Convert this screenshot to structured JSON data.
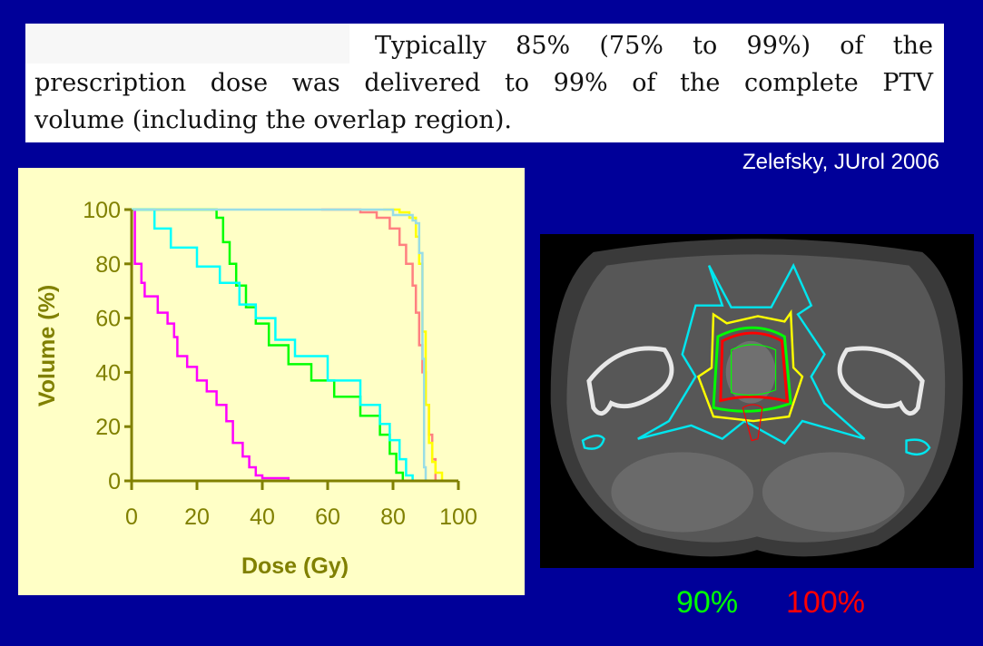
{
  "quote": {
    "line1": "Typically 85% (75% to 99%) of the",
    "line2": "prescription dose was delivered to 99% of the complete PTV",
    "line3": "volume (including the overlap region)."
  },
  "citation": "Zelefsky, JUrol 2006",
  "legend_isodose": {
    "label_90": "90%",
    "label_100": "100%",
    "color_90": "#00ff00",
    "color_100": "#ff0000"
  },
  "chart_data": {
    "type": "line",
    "title": "",
    "xlabel": "Dose (Gy)",
    "ylabel": "Volume (%)",
    "xlim": [
      0,
      100
    ],
    "ylim": [
      0,
      100
    ],
    "xticks": [
      "0",
      "20",
      "40",
      "60",
      "80",
      "100"
    ],
    "yticks": [
      "0",
      "20",
      "40",
      "60",
      "80",
      "100"
    ],
    "grid": false,
    "series": [
      {
        "name": "magenta",
        "color": "#ff00ff",
        "x": [
          1,
          1,
          2,
          3,
          4,
          8,
          11,
          13,
          14,
          17,
          20,
          23,
          26,
          29,
          31,
          34,
          36,
          38,
          40,
          48,
          90
        ],
        "y": [
          100,
          80,
          80,
          73,
          68,
          62,
          58,
          53,
          46,
          42,
          37,
          33,
          28,
          22,
          14,
          9,
          5,
          2,
          1,
          0,
          0
        ]
      },
      {
        "name": "green",
        "color": "#00ff00",
        "x": [
          0,
          19,
          26,
          28,
          30,
          32,
          35,
          38,
          42,
          48,
          55,
          62,
          70,
          76,
          79,
          81,
          83
        ],
        "y": [
          100,
          100,
          97,
          88,
          80,
          72,
          64,
          58,
          50,
          43,
          37,
          31,
          24,
          17,
          10,
          3,
          0
        ]
      },
      {
        "name": "cyan",
        "color": "#00ffff",
        "x": [
          0,
          5,
          7,
          12,
          20,
          27,
          33,
          38,
          44,
          50,
          60,
          70,
          76,
          79,
          82,
          84,
          86
        ],
        "y": [
          100,
          100,
          93,
          86,
          79,
          73,
          65,
          60,
          52,
          46,
          37,
          28,
          21,
          15,
          8,
          2,
          0
        ]
      },
      {
        "name": "salmon",
        "color": "#ff8080",
        "x": [
          58,
          70,
          75,
          79,
          82,
          84,
          86,
          87,
          88,
          89,
          90,
          91,
          92,
          93
        ],
        "y": [
          100,
          99,
          97,
          93,
          87,
          80,
          72,
          62,
          50,
          40,
          28,
          17,
          8,
          0
        ]
      },
      {
        "name": "yellow",
        "color": "#ffff00",
        "x": [
          77,
          82,
          85,
          87,
          88,
          89,
          90,
          91,
          92,
          93,
          95
        ],
        "y": [
          100,
          99,
          97,
          90,
          80,
          55,
          28,
          14,
          7,
          3,
          0
        ]
      },
      {
        "name": "light-blue",
        "color": "#99dde6",
        "x": [
          0,
          76,
          80,
          86,
          87,
          88,
          89,
          89.5,
          90,
          90,
          95
        ],
        "y": [
          100,
          100,
          98,
          96,
          95,
          84,
          45,
          5,
          4,
          0,
          0
        ]
      }
    ]
  }
}
